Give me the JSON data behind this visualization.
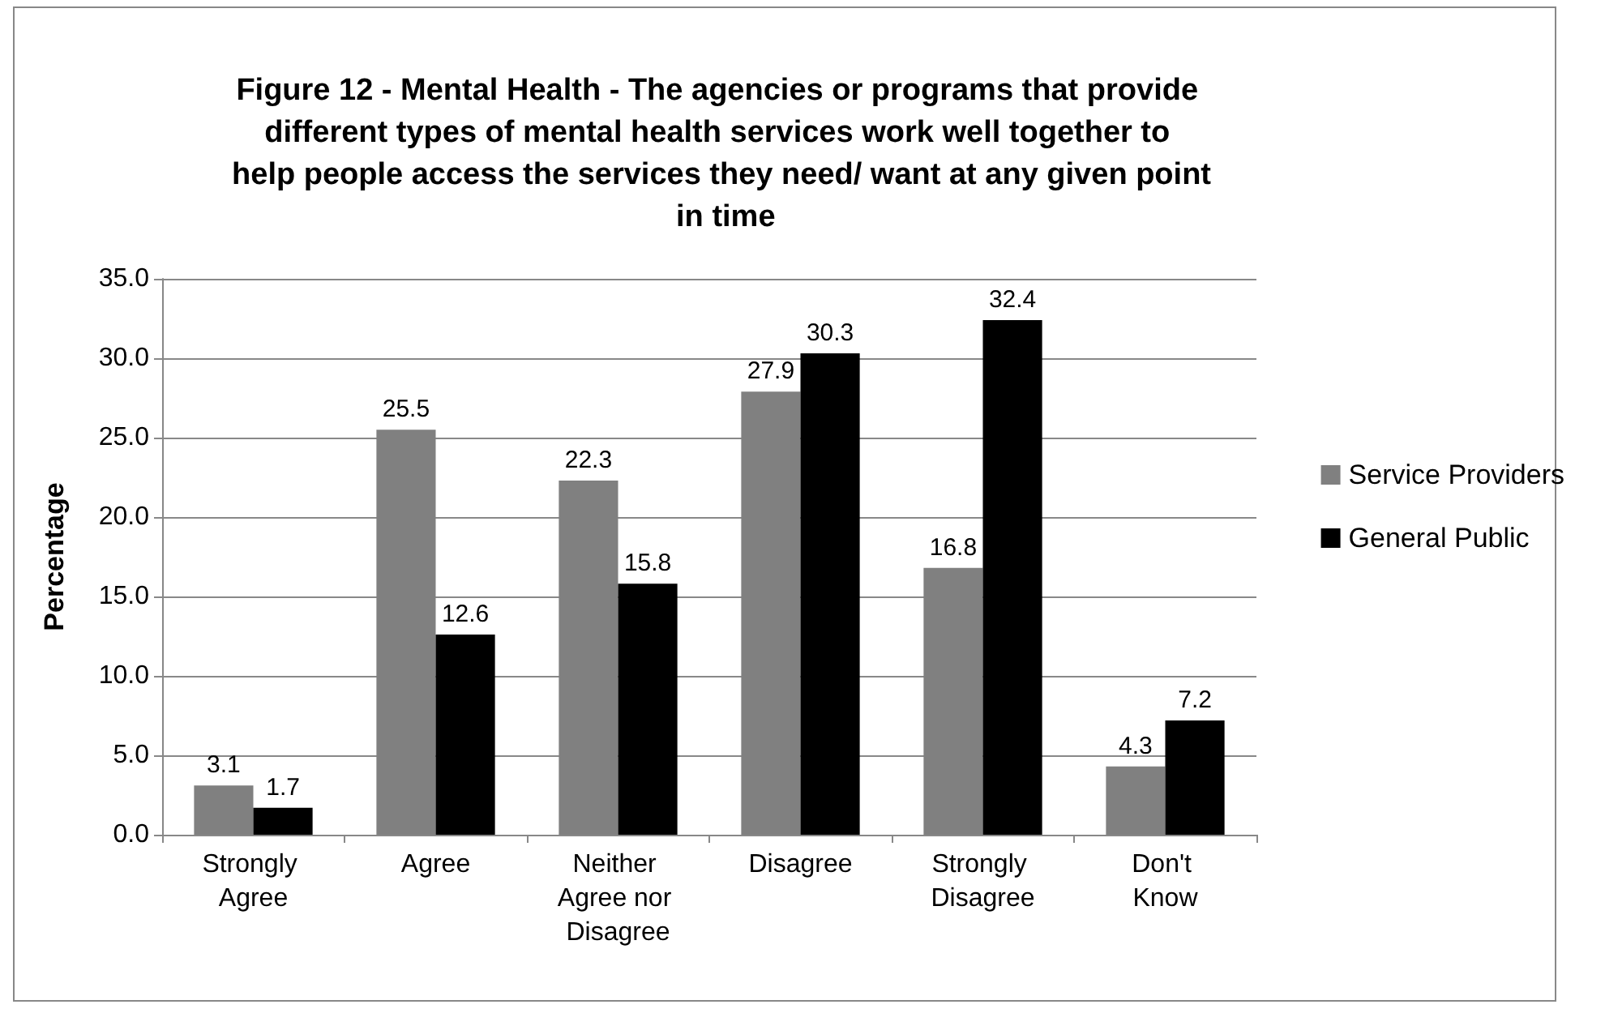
{
  "chart_data": {
    "type": "bar",
    "title": "Figure 12 - Mental Health - The agencies or programs that provide different types of mental health services work well together to help people access the services they need/ want at any given point in time",
    "ylabel": "Percentage",
    "categories": [
      "Strongly Agree",
      "Agree",
      "Neither Agree nor Disagree",
      "Disagree",
      "Strongly Disagree",
      "Don't Know"
    ],
    "series": [
      {
        "name": "Service Providers",
        "color": "#808080",
        "values": [
          3.1,
          25.5,
          22.3,
          27.9,
          16.8,
          4.3
        ]
      },
      {
        "name": "General Public",
        "color": "#000000",
        "values": [
          1.7,
          12.6,
          15.8,
          30.3,
          32.4,
          7.2
        ]
      }
    ],
    "ylim": [
      0,
      35
    ],
    "yticks": [
      {
        "value": 0,
        "label": "0.0"
      },
      {
        "value": 5,
        "label": "5.0"
      },
      {
        "value": 10,
        "label": "10.0"
      },
      {
        "value": 15,
        "label": "15.0"
      },
      {
        "value": 20,
        "label": "20.0"
      },
      {
        "value": 25,
        "label": "25.0"
      },
      {
        "value": 30,
        "label": "30.0"
      },
      {
        "value": 35,
        "label": "35.0"
      }
    ],
    "grid": "y",
    "legend": "right",
    "data_labels": true
  }
}
